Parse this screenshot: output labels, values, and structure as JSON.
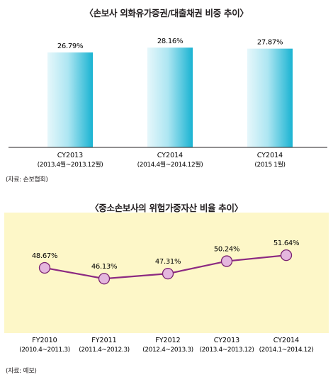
{
  "colors": {
    "bar_light": "#e6f7fb",
    "bar_dark": "#19b3d2",
    "panel_bg": "#fdf7c8",
    "line": "#8c2a82",
    "marker_fill": "#e4b6de",
    "marker_stroke": "#7a2271"
  },
  "chart_data": [
    {
      "type": "bar",
      "title": "〈손보사 외화유가증권/대출채권 비중 추이〉",
      "source": "(자료: 손보협회)",
      "categories": [
        [
          "CY2013",
          "(2013.4월~2013.12월)"
        ],
        [
          "CY2014",
          "(2014.4월~2014.12월)"
        ],
        [
          "CY2014",
          "(2015 1월)"
        ]
      ],
      "values": [
        26.79,
        28.16,
        27.87
      ],
      "data_labels": [
        "26.79%",
        "28.16%",
        "27.87%"
      ],
      "ylim": [
        0,
        30
      ],
      "grid": false,
      "legend": "none"
    },
    {
      "type": "line",
      "title": "〈중소손보사의 위험가중자산 비율 추이〉",
      "source": "(자료: 예보)",
      "categories": [
        [
          "FY2010",
          "(2010.4~2011.3)"
        ],
        [
          "FY2011",
          "(2011.4~2012.3)"
        ],
        [
          "FY2012",
          "(2012.4~2013.3)"
        ],
        [
          "CY2013",
          "(2013.4~2013.12)"
        ],
        [
          "CY2014",
          "(2014.1~2014.12)"
        ]
      ],
      "values": [
        48.67,
        46.13,
        47.31,
        50.24,
        51.64
      ],
      "data_labels": [
        "48.67%",
        "46.13%",
        "47.31%",
        "50.24%",
        "51.64%"
      ],
      "ylim": [
        35,
        60
      ],
      "grid": false,
      "legend": "none"
    }
  ]
}
